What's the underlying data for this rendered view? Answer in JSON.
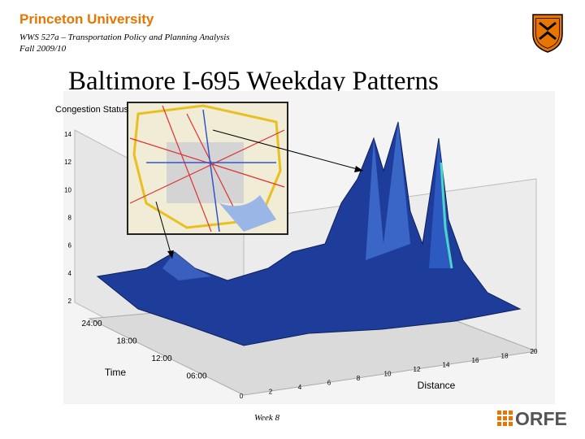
{
  "header": {
    "university": "Princeton University",
    "course": "WWS 527a – Transportation Policy and Planning Analysis",
    "term": "Fall 2009/10"
  },
  "title": "Baltimore I-695 Weekday Patterns",
  "figure": {
    "z_label": "Congestion Status",
    "z_ticks": [
      2,
      4,
      6,
      8,
      10,
      12,
      14
    ],
    "time_label": "Time",
    "time_ticks": [
      "24:00",
      "18:00",
      "12:00",
      "06:00"
    ],
    "distance_label": "Distance",
    "distance_ticks": [
      0,
      2,
      4,
      6,
      8,
      10,
      12,
      14,
      16,
      18,
      20
    ]
  },
  "footer": {
    "page": "Week 8",
    "logo": "ORFE"
  }
}
